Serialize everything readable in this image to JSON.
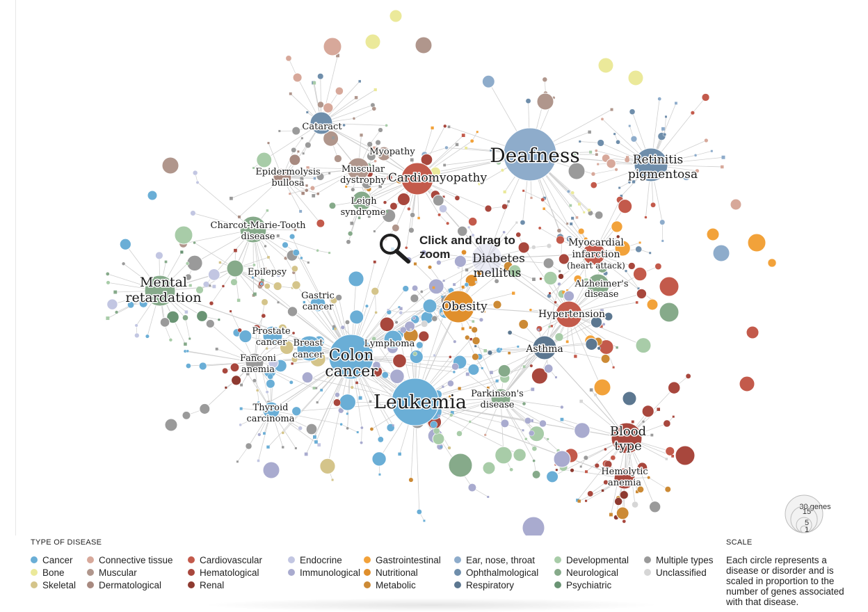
{
  "colors": {
    "cancer": "#6aaed6",
    "bone": "#ebe99a",
    "skeletal": "#d4c48a",
    "connective": "#d7a89a",
    "muscular": "#b0968c",
    "dermatological": "#a88a80",
    "cardiovascular": "#c35a4b",
    "hematological": "#a8473d",
    "renal": "#8e3a30",
    "endocrine": "#c2c6e2",
    "immunological": "#a9abcf",
    "gastrointestinal": "#f2a23a",
    "nutritional": "#e08f2c",
    "metabolic": "#cc8a35",
    "ent": "#8eaccb",
    "ophthalmological": "#6f8eab",
    "respiratory": "#5c7790",
    "developmental": "#a8cca8",
    "neurological": "#86aa8a",
    "psychiatric": "#6a9474",
    "multiple": "#9a9a9a",
    "unclassified": "#d6d6d6",
    "edge": "#cfcfcf"
  },
  "zoom_hint": {
    "icon": "magnifier-icon",
    "text": "Click and drag to zoom"
  },
  "network_labels": [
    {
      "text": "Cataract",
      "size": 13
    },
    {
      "text": "Myopathy",
      "size": 13
    },
    {
      "text": "Epidermolysis",
      "size": 13
    },
    {
      "text": "bullosa",
      "size": 13
    },
    {
      "text": "Muscular",
      "size": 13
    },
    {
      "text": "dystrophy",
      "size": 13
    },
    {
      "text": "Cardiomyopathy",
      "size": 17
    },
    {
      "text": "Leigh",
      "size": 13
    },
    {
      "text": "syndrome",
      "size": 13
    },
    {
      "text": "Deafness",
      "size": 28
    },
    {
      "text": "Retinitis",
      "size": 17
    },
    {
      "text": "pigmentosa",
      "size": 17
    },
    {
      "text": "Charcot-Marie-Tooth",
      "size": 13
    },
    {
      "text": "disease",
      "size": 13
    },
    {
      "text": "Epilepsy",
      "size": 13
    },
    {
      "text": "Mental",
      "size": 19
    },
    {
      "text": "retardation",
      "size": 19
    },
    {
      "text": "Diabetes",
      "size": 17
    },
    {
      "text": "mellitus",
      "size": 17
    },
    {
      "text": "Myocardial",
      "size": 14
    },
    {
      "text": "infarction",
      "size": 14
    },
    {
      "text": "(heart attack)",
      "size": 12
    },
    {
      "text": "Alzheimer's",
      "size": 13
    },
    {
      "text": "disease",
      "size": 13
    },
    {
      "text": "Gastric",
      "size": 13
    },
    {
      "text": "cancer",
      "size": 13
    },
    {
      "text": "Obesity",
      "size": 17
    },
    {
      "text": "Hypertension",
      "size": 14
    },
    {
      "text": "Prostate",
      "size": 13
    },
    {
      "text": "cancer",
      "size": 13
    },
    {
      "text": "Breast",
      "size": 13
    },
    {
      "text": "cancer",
      "size": 13
    },
    {
      "text": "Colon",
      "size": 22
    },
    {
      "text": "cancer",
      "size": 22
    },
    {
      "text": "Lymphoma",
      "size": 13
    },
    {
      "text": "Asthma",
      "size": 14
    },
    {
      "text": "Fanconi",
      "size": 13
    },
    {
      "text": "anemia",
      "size": 13
    },
    {
      "text": "Leukemia",
      "size": 27
    },
    {
      "text": "Parkinson's",
      "size": 13
    },
    {
      "text": "disease",
      "size": 13
    },
    {
      "text": "Thyroid",
      "size": 13
    },
    {
      "text": "carcinoma",
      "size": 13
    },
    {
      "text": "Blood",
      "size": 18
    },
    {
      "text": "type",
      "size": 18
    },
    {
      "text": "Hemolytic",
      "size": 13
    },
    {
      "text": "anemia",
      "size": 13
    }
  ],
  "legend": {
    "title": "TYPE OF DISEASE",
    "columns": [
      [
        {
          "label": "Cancer",
          "color": "#6aaed6"
        },
        {
          "label": "Bone",
          "color": "#ebe99a"
        },
        {
          "label": "Skeletal",
          "color": "#d4c48a"
        }
      ],
      [
        {
          "label": "Connective tissue",
          "color": "#d7a89a"
        },
        {
          "label": "Muscular",
          "color": "#b0968c"
        },
        {
          "label": "Dermatological",
          "color": "#a88a80"
        }
      ],
      [
        {
          "label": "Cardiovascular",
          "color": "#c35a4b"
        },
        {
          "label": "Hematological",
          "color": "#a8473d"
        },
        {
          "label": "Renal",
          "color": "#8e3a30"
        }
      ],
      [
        {
          "label": "Endocrine",
          "color": "#c2c6e2"
        },
        {
          "label": "Immunological",
          "color": "#a9abcf"
        }
      ],
      [
        {
          "label": "Gastrointestinal",
          "color": "#f2a23a"
        },
        {
          "label": "Nutritional",
          "color": "#e08f2c"
        },
        {
          "label": "Metabolic",
          "color": "#cc8a35"
        }
      ],
      [
        {
          "label": "Ear, nose, throat",
          "color": "#8eaccb"
        },
        {
          "label": "Ophthalmological",
          "color": "#6f8eab"
        },
        {
          "label": "Respiratory",
          "color": "#5c7790"
        }
      ],
      [
        {
          "label": "Developmental",
          "color": "#a8cca8"
        },
        {
          "label": "Neurological",
          "color": "#86aa8a"
        },
        {
          "label": "Psychiatric",
          "color": "#6a9474"
        }
      ],
      [
        {
          "label": "Multiple types",
          "color": "#9a9a9a"
        },
        {
          "label": "Unclassified",
          "color": "#d6d6d6"
        }
      ]
    ]
  },
  "scale": {
    "title": "SCALE",
    "description": "Each circle represents a disease or disorder and is scaled in proportion to the number of genes associated with that disease.",
    "circles": [
      {
        "genes": 30,
        "label": "30 genes"
      },
      {
        "genes": 15,
        "label": "15"
      },
      {
        "genes": 5,
        "label": "5"
      },
      {
        "genes": 1,
        "label": "1"
      }
    ]
  }
}
